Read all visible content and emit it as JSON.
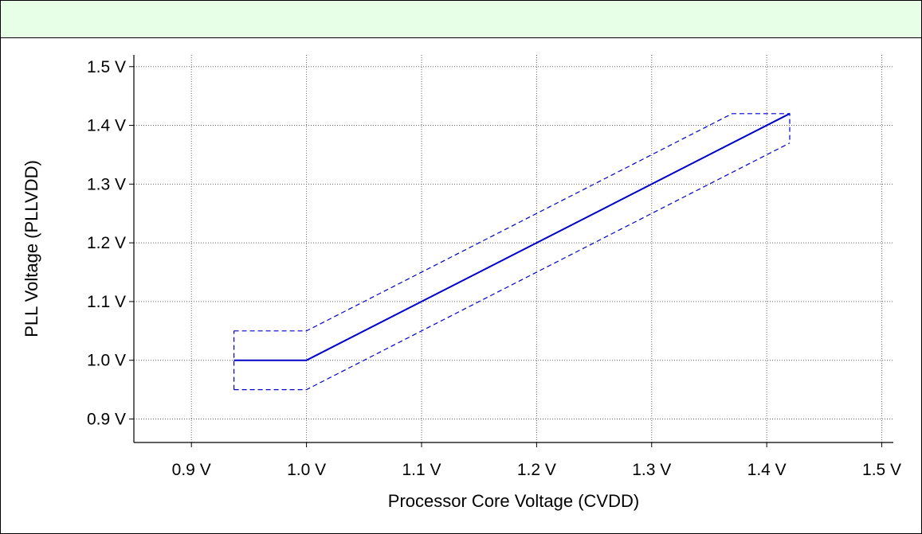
{
  "chart_data": {
    "type": "line",
    "title": "",
    "xlabel": "Processor Core Voltage (CVDD)",
    "ylabel": "PLL Voltage (PLLVDD)",
    "xlim": [
      0.85,
      1.51
    ],
    "ylim": [
      0.86,
      1.52
    ],
    "x_ticks": [
      0.9,
      1.0,
      1.1,
      1.2,
      1.3,
      1.4,
      1.5
    ],
    "x_tick_labels": [
      "0.9 V",
      "1.0 V",
      "1.1 V",
      "1.2 V",
      "1.3 V",
      "1.4 V",
      "1.5 V"
    ],
    "y_ticks": [
      0.9,
      1.0,
      1.1,
      1.2,
      1.3,
      1.4,
      1.5
    ],
    "y_tick_labels": [
      "0.9 V",
      "1.0 V",
      "1.1 V",
      "1.2 V",
      "1.3 V",
      "1.4 V",
      "1.5 V"
    ],
    "grid": true,
    "colors": {
      "series": "#0000cc",
      "grid": "#666666",
      "header": "#e6ffe6"
    },
    "series": [
      {
        "style": "solid",
        "x": [
          0.937,
          1.0,
          1.42
        ],
        "y": [
          1.0,
          1.0,
          1.42
        ]
      },
      {
        "style": "dashed",
        "x": [
          0.937,
          1.0,
          1.37,
          1.42,
          1.42
        ],
        "y": [
          1.05,
          1.05,
          1.42,
          1.42,
          1.37
        ]
      },
      {
        "style": "dashed",
        "x": [
          0.937,
          1.0,
          1.42
        ],
        "y": [
          0.95,
          0.95,
          1.37
        ]
      },
      {
        "style": "dashed",
        "x": [
          0.937,
          0.937
        ],
        "y": [
          0.95,
          1.05
        ]
      }
    ]
  }
}
